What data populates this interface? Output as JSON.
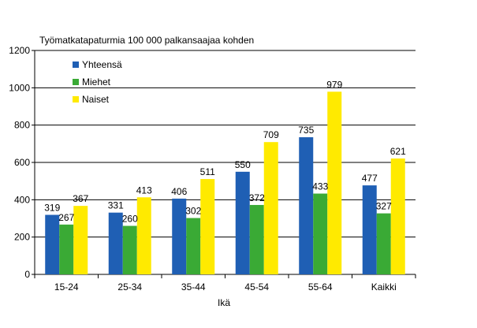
{
  "chart_data": {
    "type": "bar",
    "title": "Työmatkatapaturmia 100 000 palkansaajaa kohden",
    "xlabel": "Ikä",
    "ylabel": "",
    "ylim": [
      0,
      1200
    ],
    "yticks": [
      0,
      200,
      400,
      600,
      800,
      1000,
      1200
    ],
    "grid": true,
    "legend_position": "top-left",
    "categories": [
      "15-24",
      "25-34",
      "35-44",
      "45-54",
      "55-64",
      "Kaikki"
    ],
    "series": [
      {
        "name": "Yhteensä",
        "color": "#1f5fb4",
        "values": [
          319,
          331,
          406,
          550,
          735,
          477
        ]
      },
      {
        "name": "Miehet",
        "color": "#3aaa35",
        "values": [
          267,
          260,
          302,
          372,
          433,
          327
        ]
      },
      {
        "name": "Naiset",
        "color": "#ffea00",
        "values": [
          367,
          413,
          511,
          709,
          979,
          621
        ]
      }
    ]
  }
}
